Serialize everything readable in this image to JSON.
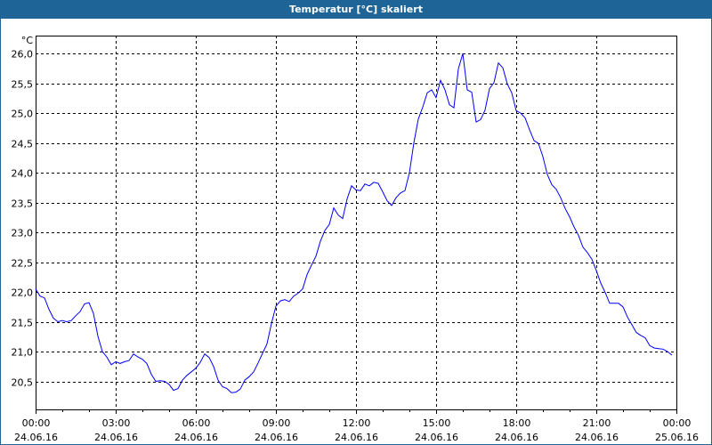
{
  "window": {
    "title": "Temperatur [°C] skaliert",
    "title_bar_color": "#1e6496"
  },
  "chart_data": {
    "type": "line",
    "title": "Temperatur [°C] skaliert",
    "ylabel": "°C",
    "xlabel": "",
    "ylim": [
      20.03,
      26.3
    ],
    "xlim": [
      "24.06.16 00:00",
      "25.06.16 00:00"
    ],
    "grid": true,
    "line_color": "#0000ff",
    "y_ticks": [
      "20,5",
      "21,0",
      "21,5",
      "22,0",
      "22,5",
      "23,0",
      "23,5",
      "24,0",
      "24,5",
      "25,0",
      "25,5",
      "26,0"
    ],
    "y_tick_values": [
      20.5,
      21.0,
      21.5,
      22.0,
      22.5,
      23.0,
      23.5,
      24.0,
      24.5,
      25.0,
      25.5,
      26.0
    ],
    "x_ticks": [
      {
        "time": "00:00",
        "date": "24.06.16",
        "hour": 0
      },
      {
        "time": "03:00",
        "date": "24.06.16",
        "hour": 3
      },
      {
        "time": "06:00",
        "date": "24.06.16",
        "hour": 6
      },
      {
        "time": "09:00",
        "date": "24.06.16",
        "hour": 9
      },
      {
        "time": "12:00",
        "date": "24.06.16",
        "hour": 12
      },
      {
        "time": "15:00",
        "date": "24.06.16",
        "hour": 15
      },
      {
        "time": "18:00",
        "date": "24.06.16",
        "hour": 18
      },
      {
        "time": "21:00",
        "date": "24.06.16",
        "hour": 21
      },
      {
        "time": "00:00",
        "date": "25.06.16",
        "hour": 24
      }
    ],
    "series": [
      {
        "points": [
          [
            "00:00",
            22.05
          ],
          [
            "00:10",
            21.93
          ],
          [
            "00:20",
            21.9
          ],
          [
            "00:30",
            21.71
          ],
          [
            "00:40",
            21.56
          ],
          [
            "00:50",
            21.5
          ],
          [
            "01:00",
            21.52
          ],
          [
            "01:10",
            21.5
          ],
          [
            "01:20",
            21.52
          ],
          [
            "01:30",
            21.6
          ],
          [
            "01:40",
            21.67
          ],
          [
            "01:50",
            21.8
          ],
          [
            "02:00",
            21.82
          ],
          [
            "02:10",
            21.64
          ],
          [
            "02:20",
            21.26
          ],
          [
            "02:30",
            21.0
          ],
          [
            "02:40",
            20.91
          ],
          [
            "02:50",
            20.78
          ],
          [
            "03:00",
            20.83
          ],
          [
            "03:10",
            20.8
          ],
          [
            "03:20",
            20.83
          ],
          [
            "03:30",
            20.85
          ],
          [
            "03:40",
            20.96
          ],
          [
            "03:50",
            20.91
          ],
          [
            "04:00",
            20.87
          ],
          [
            "04:10",
            20.8
          ],
          [
            "04:20",
            20.62
          ],
          [
            "04:30",
            20.5
          ],
          [
            "04:40",
            20.51
          ],
          [
            "04:50",
            20.5
          ],
          [
            "05:00",
            20.45
          ],
          [
            "05:10",
            20.35
          ],
          [
            "05:20",
            20.38
          ],
          [
            "05:30",
            20.52
          ],
          [
            "05:40",
            20.6
          ],
          [
            "05:50",
            20.66
          ],
          [
            "06:00",
            20.72
          ],
          [
            "06:10",
            20.82
          ],
          [
            "06:20",
            20.96
          ],
          [
            "06:30",
            20.9
          ],
          [
            "06:40",
            20.75
          ],
          [
            "06:50",
            20.52
          ],
          [
            "07:00",
            20.41
          ],
          [
            "07:10",
            20.38
          ],
          [
            "07:20",
            20.31
          ],
          [
            "07:30",
            20.32
          ],
          [
            "07:40",
            20.37
          ],
          [
            "07:50",
            20.52
          ],
          [
            "08:00",
            20.58
          ],
          [
            "08:10",
            20.66
          ],
          [
            "08:20",
            20.81
          ],
          [
            "08:30",
            20.97
          ],
          [
            "08:40",
            21.13
          ],
          [
            "08:50",
            21.47
          ],
          [
            "09:00",
            21.76
          ],
          [
            "09:10",
            21.85
          ],
          [
            "09:20",
            21.87
          ],
          [
            "09:30",
            21.84
          ],
          [
            "09:40",
            21.93
          ],
          [
            "09:50",
            21.98
          ],
          [
            "10:00",
            22.05
          ],
          [
            "10:10",
            22.29
          ],
          [
            "10:20",
            22.45
          ],
          [
            "10:30",
            22.6
          ],
          [
            "10:40",
            22.85
          ],
          [
            "10:50",
            23.03
          ],
          [
            "11:00",
            23.13
          ],
          [
            "11:10",
            23.41
          ],
          [
            "11:20",
            23.29
          ],
          [
            "11:30",
            23.23
          ],
          [
            "11:40",
            23.56
          ],
          [
            "11:50",
            23.78
          ],
          [
            "12:00",
            23.71
          ],
          [
            "12:10",
            23.7
          ],
          [
            "12:20",
            23.81
          ],
          [
            "12:30",
            23.78
          ],
          [
            "12:40",
            23.84
          ],
          [
            "12:50",
            23.82
          ],
          [
            "13:00",
            23.68
          ],
          [
            "13:10",
            23.53
          ],
          [
            "13:20",
            23.45
          ],
          [
            "13:30",
            23.58
          ],
          [
            "13:40",
            23.66
          ],
          [
            "13:50",
            23.7
          ],
          [
            "14:00",
            24.0
          ],
          [
            "14:10",
            24.5
          ],
          [
            "14:20",
            24.9
          ],
          [
            "14:30",
            25.1
          ],
          [
            "14:40",
            25.34
          ],
          [
            "14:50",
            25.39
          ],
          [
            "15:00",
            25.26
          ],
          [
            "15:10",
            25.55
          ],
          [
            "15:20",
            25.39
          ],
          [
            "15:30",
            25.14
          ],
          [
            "15:40",
            25.09
          ],
          [
            "15:50",
            25.74
          ],
          [
            "16:00",
            26.0
          ],
          [
            "16:10",
            25.39
          ],
          [
            "16:20",
            25.35
          ],
          [
            "16:30",
            24.85
          ],
          [
            "16:40",
            24.89
          ],
          [
            "16:50",
            25.05
          ],
          [
            "17:00",
            25.41
          ],
          [
            "17:10",
            25.51
          ],
          [
            "17:20",
            25.84
          ],
          [
            "17:30",
            25.76
          ],
          [
            "17:40",
            25.49
          ],
          [
            "17:50",
            25.34
          ],
          [
            "18:00",
            25.04
          ],
          [
            "18:10",
            25.0
          ],
          [
            "18:20",
            24.92
          ],
          [
            "18:30",
            24.72
          ],
          [
            "18:40",
            24.54
          ],
          [
            "18:50",
            24.49
          ],
          [
            "19:00",
            24.27
          ],
          [
            "19:10",
            23.97
          ],
          [
            "19:20",
            23.8
          ],
          [
            "19:30",
            23.72
          ],
          [
            "19:40",
            23.58
          ],
          [
            "19:50",
            23.4
          ],
          [
            "20:00",
            23.26
          ],
          [
            "20:10",
            23.09
          ],
          [
            "20:20",
            22.95
          ],
          [
            "20:30",
            22.75
          ],
          [
            "20:40",
            22.66
          ],
          [
            "20:50",
            22.55
          ],
          [
            "21:00",
            22.36
          ],
          [
            "21:10",
            22.15
          ],
          [
            "21:20",
            21.99
          ],
          [
            "21:30",
            21.81
          ],
          [
            "21:40",
            21.81
          ],
          [
            "21:50",
            21.81
          ],
          [
            "22:00",
            21.75
          ],
          [
            "22:10",
            21.58
          ],
          [
            "22:20",
            21.45
          ],
          [
            "22:30",
            21.32
          ],
          [
            "22:40",
            21.27
          ],
          [
            "22:50",
            21.23
          ],
          [
            "23:00",
            21.1
          ],
          [
            "23:10",
            21.06
          ],
          [
            "23:20",
            21.05
          ],
          [
            "23:30",
            21.04
          ],
          [
            "23:40",
            21.0
          ],
          [
            "23:50",
            20.94
          ]
        ]
      }
    ]
  }
}
